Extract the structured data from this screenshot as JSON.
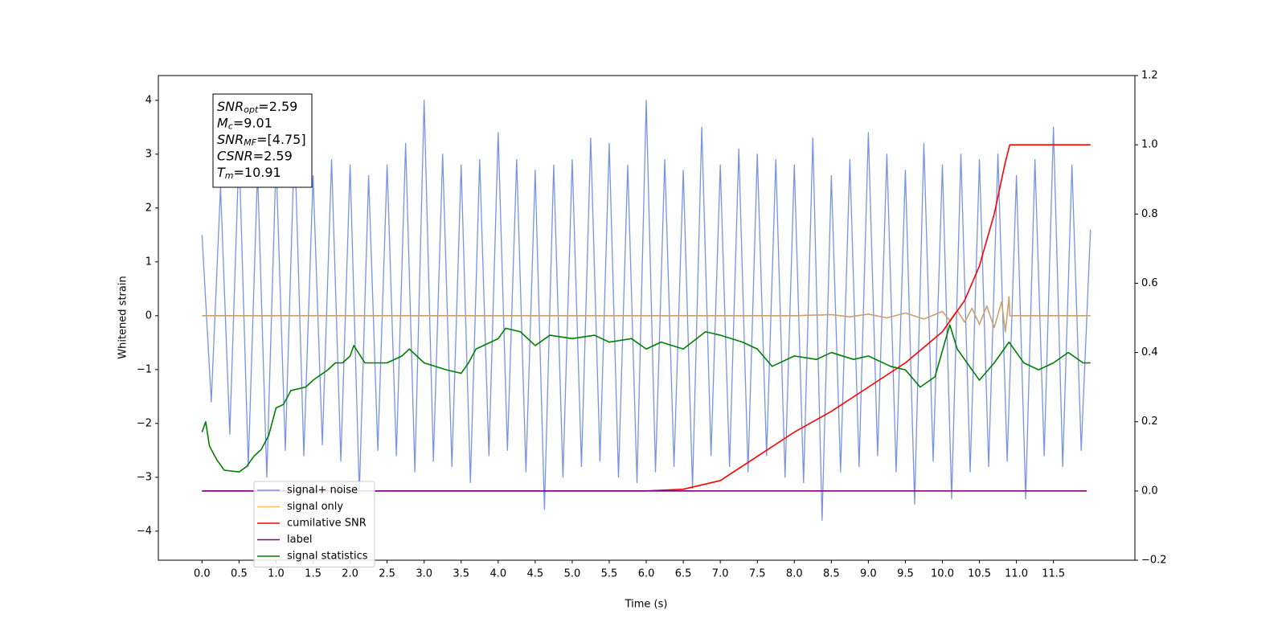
{
  "chart_data": {
    "type": "line",
    "x_label": "Time (s)",
    "y_label": "Whitened strain",
    "xlim": [
      -0.59,
      12.6
    ],
    "ylim": [
      -4.54,
      4.46
    ],
    "y2lim": [
      -0.2,
      1.2
    ],
    "xticks": [
      {
        "value": 0,
        "label": "0.0"
      },
      0.5,
      {
        "value": 1,
        "label": "1.0"
      },
      1.5,
      {
        "value": 2,
        "label": "2.0"
      },
      2.5,
      {
        "value": 3,
        "label": "3.0"
      },
      3.5,
      {
        "value": 4,
        "label": "4.0"
      },
      4.5,
      {
        "value": 5,
        "label": "5.0"
      },
      5.5,
      {
        "value": 6,
        "label": "6.0"
      },
      6.5,
      {
        "value": 7,
        "label": "7.0"
      },
      7.5,
      {
        "value": 8,
        "label": "8.0"
      },
      8.5,
      {
        "value": 9,
        "label": "9.0"
      },
      9.5,
      {
        "value": 10,
        "label": "10.0"
      },
      10.5,
      {
        "value": 11,
        "label": "11.0"
      },
      11.5
    ],
    "yticks": [
      {
        "value": -4,
        "label": "−4"
      },
      {
        "value": -3,
        "label": "−3"
      },
      {
        "value": -2,
        "label": "−2"
      },
      {
        "value": -1,
        "label": "−1"
      },
      0,
      1,
      2,
      3,
      4
    ],
    "y2ticks": [
      {
        "value": -0.2,
        "label": "−0.2"
      },
      {
        "value": 0,
        "label": "0.0"
      },
      0.2,
      0.4,
      0.6,
      0.8,
      {
        "value": 1,
        "label": "1.0"
      },
      1.2
    ],
    "legend": "lower left",
    "annotation": [
      {
        "name": "SNR",
        "sub": "opt",
        "text": "=2.59"
      },
      {
        "name": "M",
        "sub": "c",
        "text": "=9.01"
      },
      {
        "name": "SNR",
        "sub": "MF",
        "text": "=[4.75]"
      },
      {
        "name": "CSNR",
        "text": "=2.59"
      },
      {
        "name": "T",
        "sub": "m",
        "text": "=10.91"
      }
    ],
    "series": [
      {
        "name": "signal+ noise",
        "color": "#7893e6",
        "x": [
          0,
          0.125,
          0.25,
          0.375,
          0.5,
          0.625,
          0.75,
          0.875,
          1,
          1.125,
          1.25,
          1.375,
          1.5,
          1.625,
          1.75,
          1.875,
          2,
          2.125,
          2.25,
          2.375,
          2.5,
          2.625,
          2.75,
          2.875,
          3,
          3.125,
          3.25,
          3.375,
          3.5,
          3.625,
          3.75,
          3.875,
          4,
          4.125,
          4.25,
          4.375,
          4.5,
          4.625,
          4.75,
          4.875,
          5,
          5.125,
          5.25,
          5.375,
          5.5,
          5.625,
          5.75,
          5.875,
          6,
          6.125,
          6.25,
          6.375,
          6.5,
          6.625,
          6.75,
          6.875,
          7,
          7.125,
          7.25,
          7.375,
          7.5,
          7.625,
          7.75,
          7.875,
          8,
          8.125,
          8.25,
          8.375,
          8.5,
          8.625,
          8.75,
          8.875,
          9,
          9.125,
          9.25,
          9.375,
          9.5,
          9.625,
          9.75,
          9.875,
          10,
          10.125,
          10.25,
          10.375,
          10.5,
          10.625,
          10.75,
          10.875,
          11,
          11.125,
          11.25,
          11.375,
          11.5,
          11.625,
          11.75,
          11.875,
          12
        ],
        "values": [
          1.5,
          -1.6,
          2.4,
          -2.2,
          3.1,
          -2.8,
          2.7,
          -3.0,
          2.9,
          -2.5,
          3.3,
          -2.6,
          2.6,
          -2.4,
          2.9,
          -2.7,
          2.8,
          -3.3,
          2.6,
          -2.5,
          2.8,
          -2.6,
          3.2,
          -2.9,
          4.0,
          -2.7,
          3.0,
          -2.8,
          2.8,
          -3.1,
          2.9,
          -2.6,
          3.4,
          -2.5,
          2.9,
          -2.9,
          2.7,
          -3.6,
          2.8,
          -3.0,
          2.9,
          -2.8,
          3.3,
          -2.7,
          3.2,
          -3.0,
          2.8,
          -3.1,
          4.0,
          -2.9,
          2.9,
          -2.8,
          2.7,
          -3.2,
          3.5,
          -2.6,
          2.8,
          -2.8,
          3.1,
          -2.9,
          3.0,
          -2.6,
          2.9,
          -3.0,
          2.8,
          -3.1,
          3.3,
          -3.8,
          2.6,
          -2.9,
          2.9,
          -2.8,
          3.4,
          -2.6,
          3.0,
          -2.9,
          2.7,
          -3.5,
          3.2,
          -2.7,
          2.8,
          -3.4,
          3.0,
          -2.9,
          2.9,
          -2.8,
          3.0,
          -2.7,
          2.6,
          -3.4,
          2.9,
          -2.6,
          3.5,
          -2.8,
          2.8,
          -2.5,
          1.6
        ]
      },
      {
        "name": "signal only",
        "color": "#ffc060",
        "line_color": "#c9a070",
        "x": [
          0,
          8,
          8.5,
          8.75,
          9,
          9.25,
          9.5,
          9.75,
          10,
          10.1,
          10.2,
          10.3,
          10.4,
          10.5,
          10.6,
          10.7,
          10.8,
          10.85,
          10.9,
          10.91,
          12
        ],
        "values": [
          0,
          0,
          0.02,
          -0.02,
          0.03,
          -0.04,
          0.05,
          -0.06,
          0.08,
          -0.09,
          0.1,
          -0.12,
          0.14,
          -0.16,
          0.18,
          -0.22,
          0.26,
          -0.3,
          0.35,
          0,
          0
        ]
      },
      {
        "name": "cumilative SNR",
        "color": "#ff0000",
        "axis": "y2",
        "x": [
          0,
          6,
          6.5,
          7,
          7.5,
          8,
          8.5,
          9,
          9.5,
          10,
          10.3,
          10.5,
          10.7,
          10.85,
          10.91,
          12
        ],
        "values": [
          0,
          0,
          0.005,
          0.03,
          0.1,
          0.17,
          0.23,
          0.3,
          0.37,
          0.46,
          0.55,
          0.65,
          0.8,
          0.95,
          1,
          1
        ]
      },
      {
        "name": "label",
        "color": "#800080",
        "axis": "y2",
        "x": [
          0,
          11.95
        ],
        "values": [
          0,
          0
        ]
      },
      {
        "name": "signal statistics",
        "color": "#008000",
        "axis": "y2",
        "x": [
          0,
          0.05,
          0.1,
          0.2,
          0.3,
          0.5,
          0.6,
          0.7,
          0.8,
          0.9,
          1,
          1.1,
          1.2,
          1.4,
          1.5,
          1.7,
          1.8,
          1.9,
          2,
          2.05,
          2.2,
          2.5,
          2.7,
          2.8,
          3,
          3.3,
          3.5,
          3.6,
          3.7,
          4,
          4.1,
          4.3,
          4.5,
          4.7,
          5,
          5.3,
          5.5,
          5.8,
          6,
          6.2,
          6.5,
          6.8,
          7,
          7.3,
          7.5,
          7.7,
          8,
          8.3,
          8.5,
          8.8,
          9,
          9.3,
          9.5,
          9.7,
          9.9,
          10.1,
          10.2,
          10.5,
          10.7,
          10.9,
          11.1,
          11.3,
          11.5,
          11.7,
          11.9,
          12
        ],
        "values": [
          0.17,
          0.2,
          0.13,
          0.09,
          0.06,
          0.055,
          0.07,
          0.1,
          0.12,
          0.16,
          0.24,
          0.25,
          0.29,
          0.3,
          0.32,
          0.35,
          0.37,
          0.37,
          0.39,
          0.42,
          0.37,
          0.37,
          0.39,
          0.41,
          0.37,
          0.35,
          0.34,
          0.37,
          0.41,
          0.44,
          0.47,
          0.46,
          0.42,
          0.45,
          0.44,
          0.45,
          0.43,
          0.44,
          0.41,
          0.43,
          0.41,
          0.46,
          0.45,
          0.43,
          0.41,
          0.36,
          0.39,
          0.38,
          0.4,
          0.38,
          0.39,
          0.36,
          0.35,
          0.3,
          0.33,
          0.48,
          0.41,
          0.32,
          0.37,
          0.43,
          0.37,
          0.35,
          0.37,
          0.4,
          0.37,
          0.37
        ]
      }
    ]
  }
}
